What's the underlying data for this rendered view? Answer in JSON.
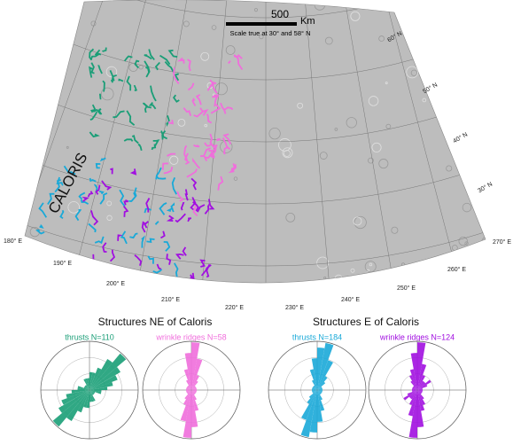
{
  "map": {
    "scale_value": "500",
    "scale_unit": "Km",
    "scale_note": "Scale true at 30° and 58° N",
    "basin_label": "CALORIS",
    "longitudes": [
      "180° E",
      "190° E",
      "200° E",
      "210° E",
      "220° E",
      "230° E",
      "240° E",
      "250° E",
      "260° E",
      "270° E"
    ],
    "latitudes": [
      "60° N",
      "50° N",
      "40° N",
      "30° N"
    ]
  },
  "panels": [
    "Structures NE of Caloris",
    "Structures E of Caloris"
  ],
  "chart_data": [
    {
      "type": "rose",
      "title": "thrusts N=110",
      "color": "#1a9e77",
      "values": [
        3,
        3,
        4,
        6,
        8,
        6,
        5,
        4,
        3,
        2,
        2,
        1,
        1,
        1,
        1,
        2,
        2,
        2
      ]
    },
    {
      "type": "rose",
      "title": "wrinkle ridges N=58",
      "color": "#f06edc",
      "values": [
        9,
        6,
        3,
        2,
        1,
        1,
        1,
        1,
        1,
        1,
        1,
        1,
        1,
        1,
        1,
        2,
        4,
        7
      ]
    },
    {
      "type": "rose",
      "title": "thrusts N=184",
      "color": "#19a9d8",
      "values": [
        8,
        9,
        6,
        3,
        2,
        1,
        1,
        1,
        1,
        1,
        1,
        1,
        1,
        1,
        1,
        2,
        4,
        6
      ]
    },
    {
      "type": "rose",
      "title": "wrinkle ridges N=124",
      "color": "#a10fe0",
      "values": [
        9,
        5,
        3,
        2,
        2,
        3,
        2,
        1,
        1,
        1,
        1,
        1,
        1,
        1,
        2,
        3,
        4,
        7
      ]
    }
  ]
}
